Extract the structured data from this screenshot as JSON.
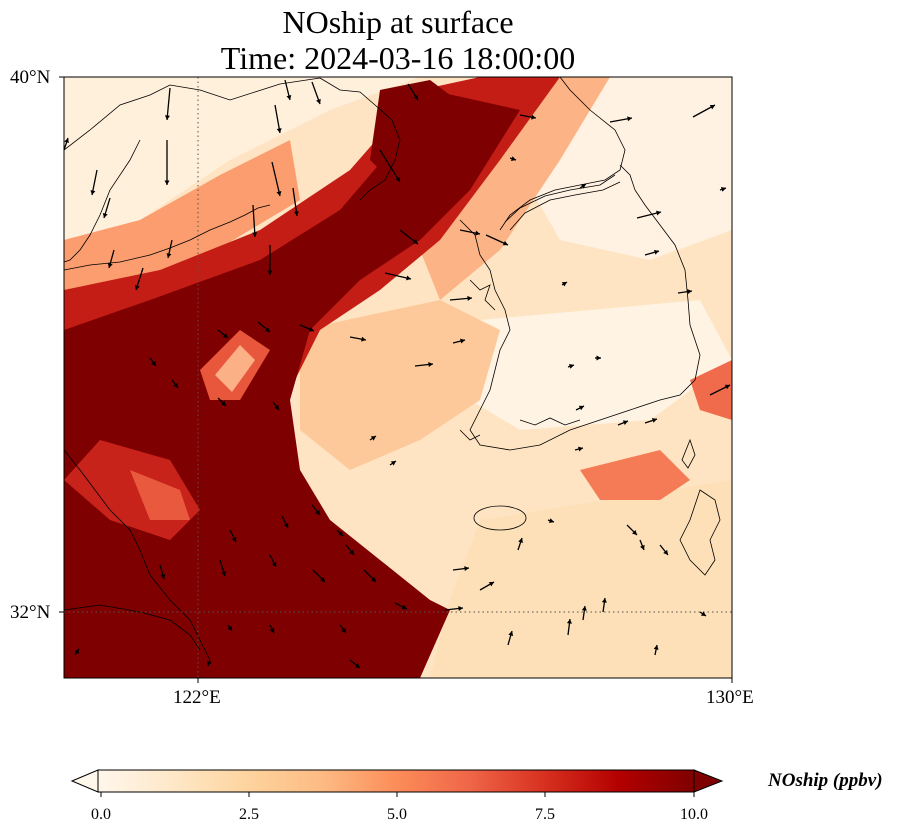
{
  "title": {
    "line1": "NOship at surface",
    "line2": "Time: 2024-03-16 18:00:00"
  },
  "map": {
    "lon_range": [
      120,
      130
    ],
    "lat_range": [
      31,
      40
    ],
    "ticks": {
      "lat": [
        {
          "label": "40°N",
          "value": 40
        },
        {
          "label": "32°N",
          "value": 32
        }
      ],
      "lon": [
        {
          "label": "122°E",
          "value": 122
        },
        {
          "label": "130°E",
          "value": 130
        }
      ]
    },
    "gridlines": {
      "lon": 122,
      "lat": 32,
      "style": "dotted"
    },
    "features": [
      "coastline",
      "korean-peninsula",
      "shandong-peninsula",
      "jeju-island",
      "kyushu"
    ],
    "wind_vectors": "shown"
  },
  "colorbar": {
    "label": "NOship (ppbv)",
    "ticks": [
      "0.0",
      "2.5",
      "5.0",
      "7.5",
      "10.0"
    ],
    "tick_values": [
      0,
      2.5,
      5,
      7.5,
      10
    ],
    "extend": "both",
    "colormap": "OrRd",
    "colors": [
      "#fff7ec",
      "#fee8c8",
      "#fdd49e",
      "#fdbb84",
      "#fc8d59",
      "#ef6548",
      "#d7301f",
      "#b30000",
      "#7f0000"
    ]
  }
}
